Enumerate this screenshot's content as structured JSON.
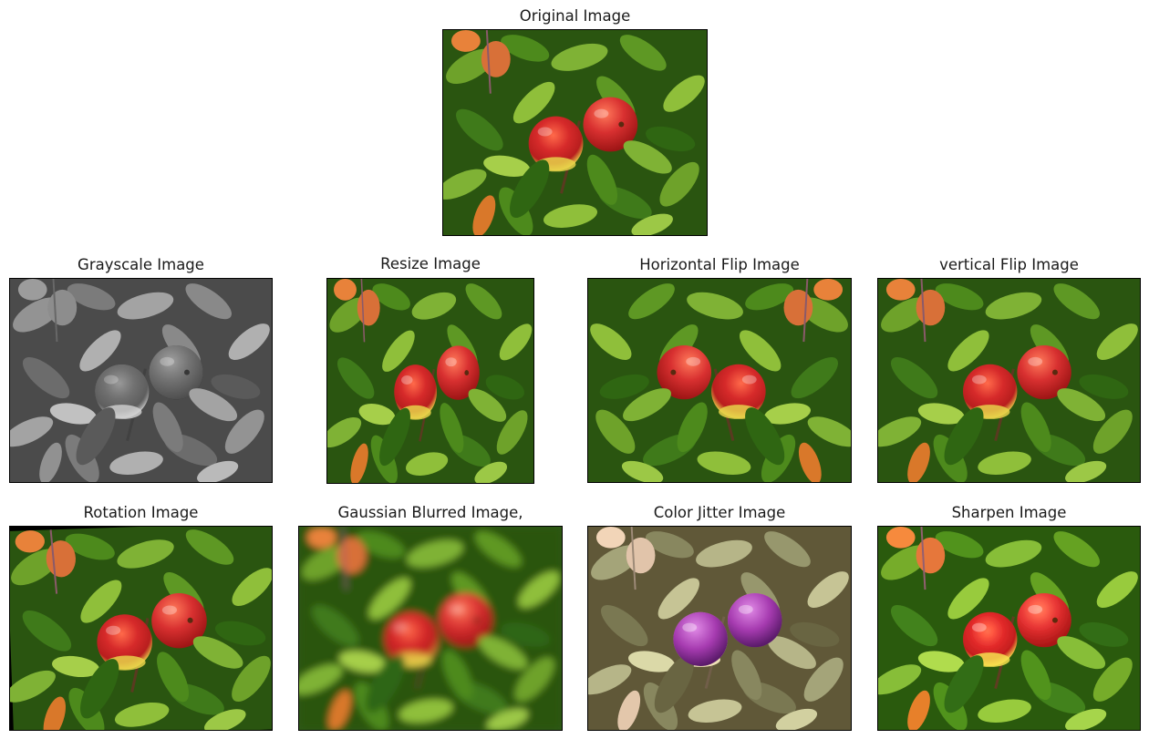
{
  "figure": {
    "panels": [
      {
        "id": "original",
        "title": "Original Image",
        "filter": "none"
      },
      {
        "id": "grayscale",
        "title": "Grayscale Image",
        "filter": "grayscale"
      },
      {
        "id": "resize",
        "title": "Resize Image",
        "filter": "none"
      },
      {
        "id": "hflip",
        "title": "Horizontal Flip Image",
        "filter": "hflip"
      },
      {
        "id": "vflip",
        "title": "vertical Flip Image",
        "filter": "none"
      },
      {
        "id": "rotation",
        "title": "Rotation Image",
        "filter": "rotate"
      },
      {
        "id": "blur",
        "title": "Gaussian Blurred Image,",
        "filter": "blur"
      },
      {
        "id": "jitter",
        "title": "Color Jitter Image",
        "filter": "jitter"
      },
      {
        "id": "sharpen",
        "title": "Sharpen Image",
        "filter": "sharpen"
      }
    ],
    "subject": "two red-yellow apples on a branch surrounded by green leaves",
    "colors": {
      "leaf_dark": "#1f4a0c",
      "leaf_mid": "#3f7a1a",
      "leaf_light": "#8fbf3a",
      "apple_red": "#d62a2a",
      "apple_yellow": "#e8d24a",
      "jitter_apple": "#a63bb0",
      "jitter_leaf": "#c8b882"
    }
  }
}
